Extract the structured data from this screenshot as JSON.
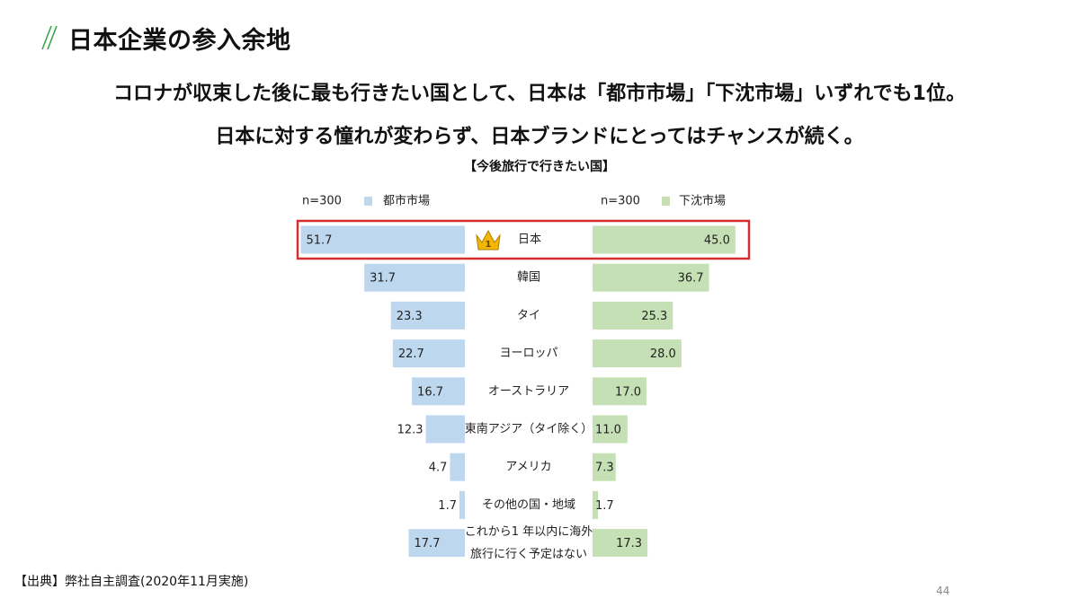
{
  "page": {
    "title": "日本企業の参入余地",
    "headline_1": "コロナが収束した後に最も行きたい国として、日本は「都市市場」「下沈市場」いずれでも1位。",
    "headline_2": "日本に対する憧れが変わらず、日本ブランドにとってはチャンスが続く。",
    "source_note": "【出典】弊社自主調査(2020年11月実施)",
    "page_number": "44",
    "slash_icon": "double-slash-icon",
    "accent_color": "#3aa64a"
  },
  "chart_data": {
    "type": "bar",
    "title": "【今後旅行で行きたい国】",
    "layout": "butterfly",
    "categories": [
      [
        "日本"
      ],
      [
        "韓国"
      ],
      [
        "タイ"
      ],
      [
        "ヨーロッパ"
      ],
      [
        "オーストラリア"
      ],
      [
        "東南アジア（タイ除く）"
      ],
      [
        "アメリカ"
      ],
      [
        "その他の国・地域"
      ],
      [
        "これから1 年以内に海外",
        "旅行に行く予定はない"
      ]
    ],
    "series": [
      {
        "name": "都市市場",
        "sample": "n=300",
        "side": "left",
        "color": "#bdd7ee",
        "values": [
          51.7,
          31.7,
          23.3,
          22.7,
          16.7,
          12.3,
          4.7,
          1.7,
          17.7
        ]
      },
      {
        "name": "下沈市場",
        "sample": "n=300",
        "side": "right",
        "color": "#c5e0b4",
        "values": [
          45.0,
          36.7,
          25.3,
          28.0,
          17.0,
          11.0,
          7.3,
          1.7,
          17.3
        ]
      }
    ],
    "xlim": [
      0,
      55
    ],
    "highlight": {
      "category_index": 0,
      "color": "#d32f2f"
    },
    "icons": [
      "crown-icon"
    ],
    "crown_rank_label": "1"
  }
}
